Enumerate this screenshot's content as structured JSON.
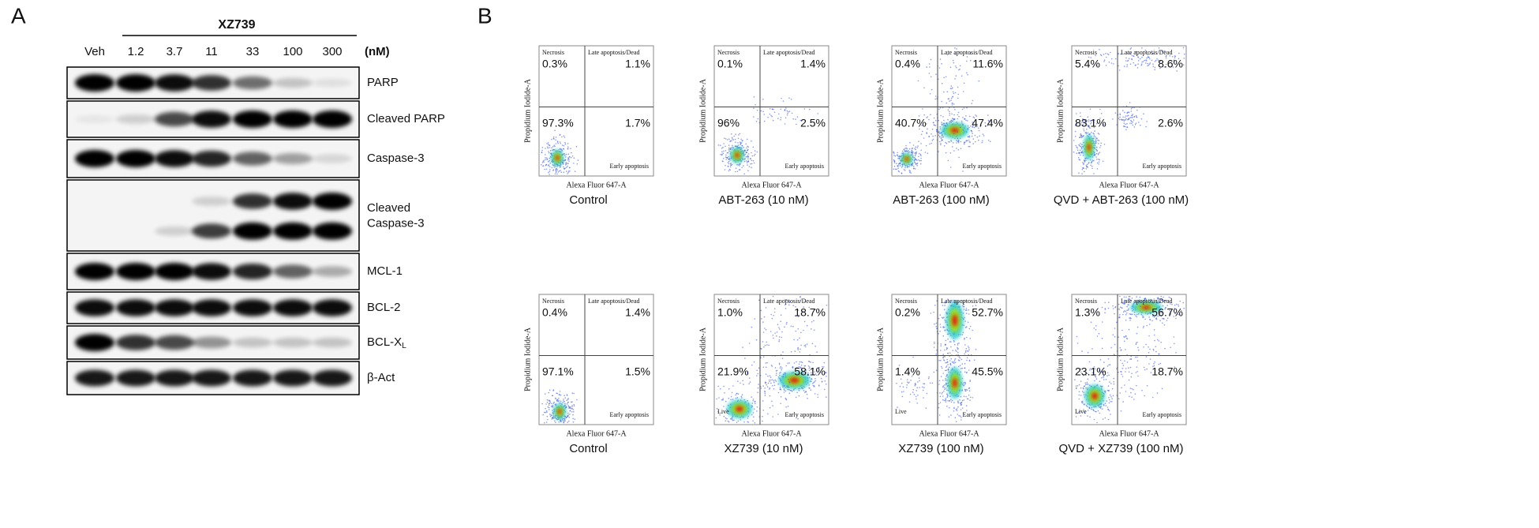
{
  "panel_a": {
    "label": "A",
    "treatment": "XZ739",
    "unit": "(nM)",
    "lanes": [
      "Veh",
      "1.2",
      "3.7",
      "11",
      "33",
      "100",
      "300"
    ],
    "blots": [
      {
        "name": "PARP"
      },
      {
        "name": "Cleaved PARP"
      },
      {
        "name": "Caspase-3"
      },
      {
        "name": "Cleaved\nCaspase-3"
      },
      {
        "name": "MCL-1"
      },
      {
        "name": "BCL-2"
      },
      {
        "name": "BCL-X",
        "subscript": "L"
      },
      {
        "name": "β-Act"
      }
    ]
  },
  "panel_b": {
    "label": "B",
    "y_axis": "Propidium Iodide-A",
    "x_axis": "Alexa Fluor 647-A",
    "necrosis_label": "Necrosis",
    "late_label": "Late apoptosis/Dead",
    "early_label": "Early apoptosis",
    "plots": [
      {
        "caption": "Control",
        "necrosis": "0.3%",
        "late": "1.1%",
        "live": "97.3%",
        "early": "1.7%"
      },
      {
        "caption": "ABT-263 (10 nM)",
        "necrosis": "0.1%",
        "late": "1.4%",
        "live": "96%",
        "early": "2.5%"
      },
      {
        "caption": "ABT-263 (100 nM)",
        "necrosis": "0.4%",
        "late": "11.6%",
        "live": "40.7%",
        "early": "47.4%"
      },
      {
        "caption": "QVD + ABT-263 (100 nM)",
        "necrosis": "5.4%",
        "late": "8.6%",
        "live": "83.1%",
        "early": "2.6%"
      },
      {
        "caption": "Control",
        "necrosis": "0.4%",
        "late": "1.4%",
        "live": "97.1%",
        "early": "1.5%"
      },
      {
        "caption": "XZ739 (10 nM)",
        "necrosis": "1.0%",
        "late": "18.7%",
        "live": "21.9%",
        "early": "58.1%",
        "live_label": "Live"
      },
      {
        "caption": "XZ739 (100 nM)",
        "necrosis": "0.2%",
        "late": "52.7%",
        "live": "1.4%",
        "early": "45.5%",
        "live_label": "Live"
      },
      {
        "caption": "QVD + XZ739 (100 nM)",
        "necrosis": "1.3%",
        "late": "56.7%",
        "live": "23.1%",
        "early": "18.7%",
        "live_label": "Live"
      }
    ]
  }
}
